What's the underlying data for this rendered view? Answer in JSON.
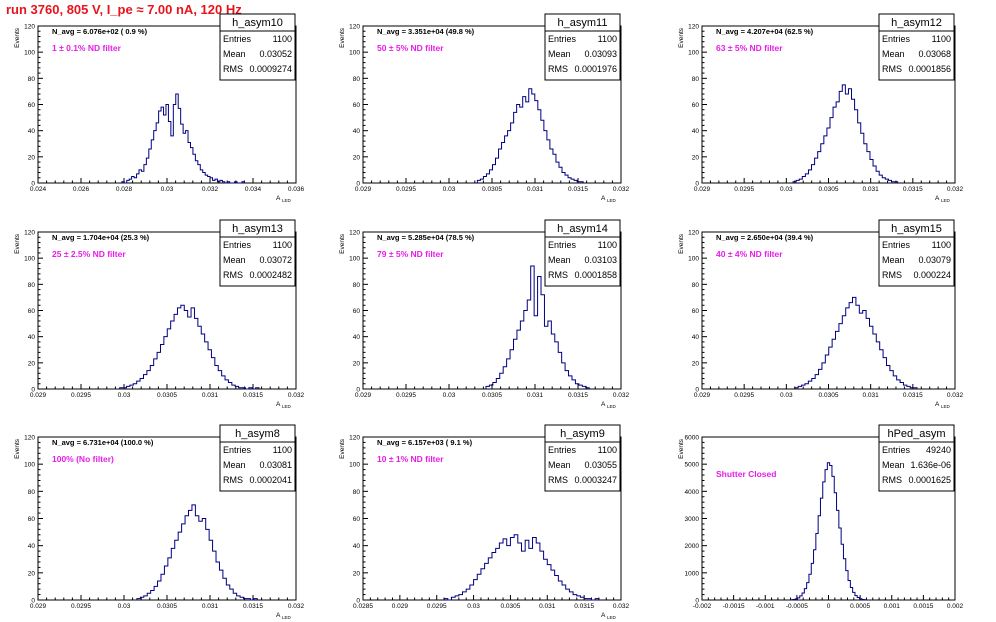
{
  "run_title": "run 3760,   805 V, I_pe ≈ 7.00 nA, 120 Hz",
  "colors": {
    "title": "#e8141c",
    "annotation": "#e81ce8",
    "histogram": "#000080"
  },
  "stat_labels": {
    "entries": "Entries",
    "mean": "Mean",
    "rms": "RMS"
  },
  "chart_data": [
    {
      "type": "bar",
      "style": "step-histogram",
      "name": "h_asym10",
      "nav_text": "N_avg = 6.076e+02 ( 0.9 %)",
      "filter_text": "1 ± 0.1% ND filter",
      "entries": "1100",
      "mean": "0.03052",
      "rms": "0.0009274",
      "ylabel": "Events",
      "xlabel": "A",
      "xlabel_sub": "LED",
      "xlim": [
        0.024,
        0.036
      ],
      "ylim": [
        0,
        120
      ],
      "xticks": [
        "0.024",
        "0.026",
        "0.028",
        "0.03",
        "0.032",
        "0.034",
        "0.036"
      ],
      "yticks": [
        "0",
        "20",
        "40",
        "60",
        "80",
        "100",
        "120"
      ],
      "x_min": 0.0279,
      "x_max": 0.0336,
      "values": [
        1,
        0,
        2,
        3,
        5,
        4,
        7,
        10,
        9,
        14,
        19,
        26,
        33,
        40,
        46,
        55,
        58,
        52,
        60,
        47,
        36,
        60,
        68,
        57,
        45,
        38,
        40,
        31,
        27,
        22,
        17,
        14,
        10,
        8,
        6,
        5,
        4,
        2,
        3,
        1,
        2,
        1,
        0,
        1,
        0,
        0,
        1,
        0,
        0,
        1
      ]
    },
    {
      "type": "bar",
      "style": "step-histogram",
      "name": "h_asym11",
      "nav_text": "N_avg = 3.351e+04 (49.8 %)",
      "filter_text": "50 ± 5% ND filter",
      "entries": "1100",
      "mean": "0.03093",
      "rms": "0.0001976",
      "ylabel": "Events",
      "xlabel": "A",
      "xlabel_sub": "LED",
      "xlim": [
        0.029,
        0.032
      ],
      "ylim": [
        0,
        120
      ],
      "xticks": [
        "0.029",
        "0.0295",
        "0.03",
        "0.0305",
        "0.031",
        "0.0315",
        "0.032"
      ],
      "yticks": [
        "0",
        "20",
        "40",
        "60",
        "80",
        "100",
        "120"
      ],
      "x_min": 0.03033,
      "x_max": 0.03156,
      "values": [
        2,
        3,
        5,
        7,
        10,
        14,
        19,
        26,
        31,
        36,
        40,
        46,
        54,
        60,
        58,
        66,
        62,
        72,
        68,
        63,
        56,
        48,
        40,
        33,
        26,
        22,
        16,
        12,
        8,
        6,
        4,
        3,
        2,
        1,
        1
      ]
    },
    {
      "type": "bar",
      "style": "step-histogram",
      "name": "h_asym12",
      "nav_text": "N_avg = 4.207e+04 (62.5 %)",
      "filter_text": "63 ± 5% ND filter",
      "entries": "1100",
      "mean": "0.03068",
      "rms": "0.0001856",
      "ylabel": "Events",
      "xlabel": "A",
      "xlabel_sub": "LED",
      "xlim": [
        0.029,
        0.032
      ],
      "ylim": [
        0,
        120
      ],
      "xticks": [
        "0.029",
        "0.0295",
        "0.03",
        "0.0305",
        "0.031",
        "0.0315",
        "0.032"
      ],
      "yticks": [
        "0",
        "20",
        "40",
        "60",
        "80",
        "100",
        "120"
      ],
      "x_min": 0.03008,
      "x_max": 0.03132,
      "values": [
        1,
        2,
        3,
        5,
        7,
        10,
        14,
        19,
        24,
        30,
        36,
        42,
        50,
        58,
        62,
        70,
        75,
        68,
        72,
        64,
        56,
        46,
        38,
        30,
        24,
        18,
        13,
        9,
        6,
        4,
        3,
        2,
        1,
        1
      ]
    },
    {
      "type": "bar",
      "style": "step-histogram",
      "name": "h_asym13",
      "nav_text": "N_avg = 1.704e+04 (25.3 %)",
      "filter_text": "25 ± 2.5% ND filter",
      "entries": "1100",
      "mean": "0.03072",
      "rms": "0.0002482",
      "ylabel": "Events",
      "xlabel": "A",
      "xlabel_sub": "LED",
      "xlim": [
        0.029,
        0.032
      ],
      "ylim": [
        0,
        120
      ],
      "xticks": [
        "0.029",
        "0.0295",
        "0.03",
        "0.0305",
        "0.031",
        "0.0315",
        "0.032"
      ],
      "yticks": [
        "0",
        "20",
        "40",
        "60",
        "80",
        "100",
        "120"
      ],
      "x_min": 0.02995,
      "x_max": 0.03157,
      "values": [
        1,
        1,
        2,
        3,
        4,
        6,
        8,
        11,
        14,
        18,
        23,
        28,
        34,
        40,
        46,
        52,
        57,
        62,
        64,
        60,
        55,
        62,
        54,
        48,
        42,
        36,
        30,
        24,
        18,
        14,
        10,
        7,
        5,
        3,
        2,
        1,
        1,
        0,
        1,
        0,
        1
      ]
    },
    {
      "type": "bar",
      "style": "step-histogram",
      "name": "h_asym14",
      "nav_text": "N_avg = 5.285e+04 (78.5 %)",
      "filter_text": "79 ± 5% ND filter",
      "entries": "1100",
      "mean": "0.03103",
      "rms": "0.0001858",
      "ylabel": "Events",
      "xlabel": "A",
      "xlabel_sub": "LED",
      "xlim": [
        0.029,
        0.032
      ],
      "ylim": [
        0,
        120
      ],
      "xticks": [
        "0.029",
        "0.0295",
        "0.03",
        "0.0305",
        "0.031",
        "0.0315",
        "0.032"
      ],
      "yticks": [
        "0",
        "20",
        "40",
        "60",
        "80",
        "100",
        "120"
      ],
      "x_min": 0.03043,
      "x_max": 0.03163,
      "values": [
        2,
        3,
        5,
        8,
        12,
        17,
        23,
        30,
        38,
        45,
        52,
        60,
        68,
        94,
        56,
        86,
        72,
        48,
        52,
        42,
        36,
        28,
        20,
        14,
        10,
        7,
        4,
        3,
        2,
        1
      ]
    },
    {
      "type": "bar",
      "style": "step-histogram",
      "name": "h_asym15",
      "nav_text": "N_avg = 2.650e+04 (39.4 %)",
      "filter_text": "40 ± 4% ND filter",
      "entries": "1100",
      "mean": "0.03079",
      "rms": "0.000224",
      "ylabel": "Events",
      "xlabel": "A",
      "xlabel_sub": "LED",
      "xlim": [
        0.029,
        0.032
      ],
      "ylim": [
        0,
        120
      ],
      "xticks": [
        "0.029",
        "0.0295",
        "0.03",
        "0.0305",
        "0.031",
        "0.0315",
        "0.032"
      ],
      "yticks": [
        "0",
        "20",
        "40",
        "60",
        "80",
        "100",
        "120"
      ],
      "x_min": 0.0301,
      "x_max": 0.03155,
      "values": [
        1,
        2,
        3,
        4,
        6,
        8,
        11,
        15,
        20,
        26,
        32,
        38,
        44,
        50,
        56,
        62,
        66,
        70,
        64,
        58,
        60,
        54,
        48,
        42,
        36,
        30,
        24,
        18,
        14,
        10,
        7,
        5,
        3,
        2,
        1,
        1
      ]
    },
    {
      "type": "bar",
      "style": "step-histogram",
      "name": "h_asym8",
      "nav_text": "N_avg = 6.731e+04 (100.0 %)",
      "filter_text": "100% (No filter)",
      "entries": "1100",
      "mean": "0.03081",
      "rms": "0.0002041",
      "ylabel": "Events",
      "xlabel": "A",
      "xlabel_sub": "LED",
      "xlim": [
        0.029,
        0.032
      ],
      "ylim": [
        0,
        120
      ],
      "xticks": [
        "0.029",
        "0.0295",
        "0.03",
        "0.0305",
        "0.031",
        "0.0315",
        "0.032"
      ],
      "yticks": [
        "0",
        "20",
        "40",
        "60",
        "80",
        "100",
        "120"
      ],
      "x_min": 0.03015,
      "x_max": 0.03155,
      "values": [
        1,
        2,
        3,
        5,
        7,
        10,
        14,
        19,
        25,
        31,
        38,
        44,
        50,
        56,
        62,
        66,
        70,
        62,
        58,
        60,
        52,
        44,
        36,
        28,
        22,
        16,
        11,
        8,
        5,
        3,
        2,
        1,
        1,
        0,
        1
      ]
    },
    {
      "type": "bar",
      "style": "step-histogram",
      "name": "h_asym9",
      "nav_text": "N_avg = 6.157e+03 ( 9.1 %)",
      "filter_text": "10 ± 1% ND filter",
      "entries": "1100",
      "mean": "0.03055",
      "rms": "0.0003247",
      "ylabel": "Events",
      "xlabel": "A",
      "xlabel_sub": "LED",
      "xlim": [
        0.0285,
        0.032
      ],
      "ylim": [
        0,
        120
      ],
      "xticks": [
        "0.0285",
        "0.029",
        "0.0295",
        "0.03",
        "0.0305",
        "0.031",
        "0.0315",
        "0.032"
      ],
      "yticks": [
        "0",
        "20",
        "40",
        "60",
        "80",
        "100",
        "120"
      ],
      "x_min": 0.0296,
      "x_max": 0.0317,
      "values": [
        1,
        0,
        2,
        3,
        4,
        6,
        8,
        11,
        15,
        19,
        23,
        27,
        31,
        35,
        38,
        42,
        45,
        40,
        46,
        48,
        42,
        36,
        44,
        38,
        46,
        42,
        36,
        30,
        26,
        22,
        18,
        14,
        11,
        8,
        6,
        4,
        3,
        2,
        1,
        1,
        0,
        1
      ]
    },
    {
      "type": "bar",
      "style": "step-histogram",
      "name": "hPed_asym",
      "nav_text": "",
      "filter_text": "Shutter Closed",
      "entries": "49240",
      "mean": "1.636e-06",
      "rms": "0.0001625",
      "ylabel": "Events",
      "xlabel": "",
      "xlabel_sub": "",
      "xlim": [
        -0.002,
        0.002
      ],
      "ylim": [
        0,
        6000
      ],
      "xticks": [
        "-0.002",
        "-0.0015",
        "-0.001",
        "-0.0005",
        "0",
        "0.0005",
        "0.001",
        "0.0015",
        "0.002"
      ],
      "yticks": [
        "0",
        "1000",
        "2000",
        "3000",
        "4000",
        "5000",
        "6000"
      ],
      "x_min": -0.0006,
      "x_max": 0.0006,
      "values": [
        10,
        20,
        40,
        80,
        150,
        260,
        420,
        640,
        950,
        1350,
        1850,
        2450,
        3100,
        3750,
        4350,
        4800,
        5050,
        4950,
        4550,
        3950,
        3300,
        2650,
        2050,
        1520,
        1080,
        720,
        460,
        280,
        160,
        90,
        45,
        20,
        10
      ]
    }
  ]
}
